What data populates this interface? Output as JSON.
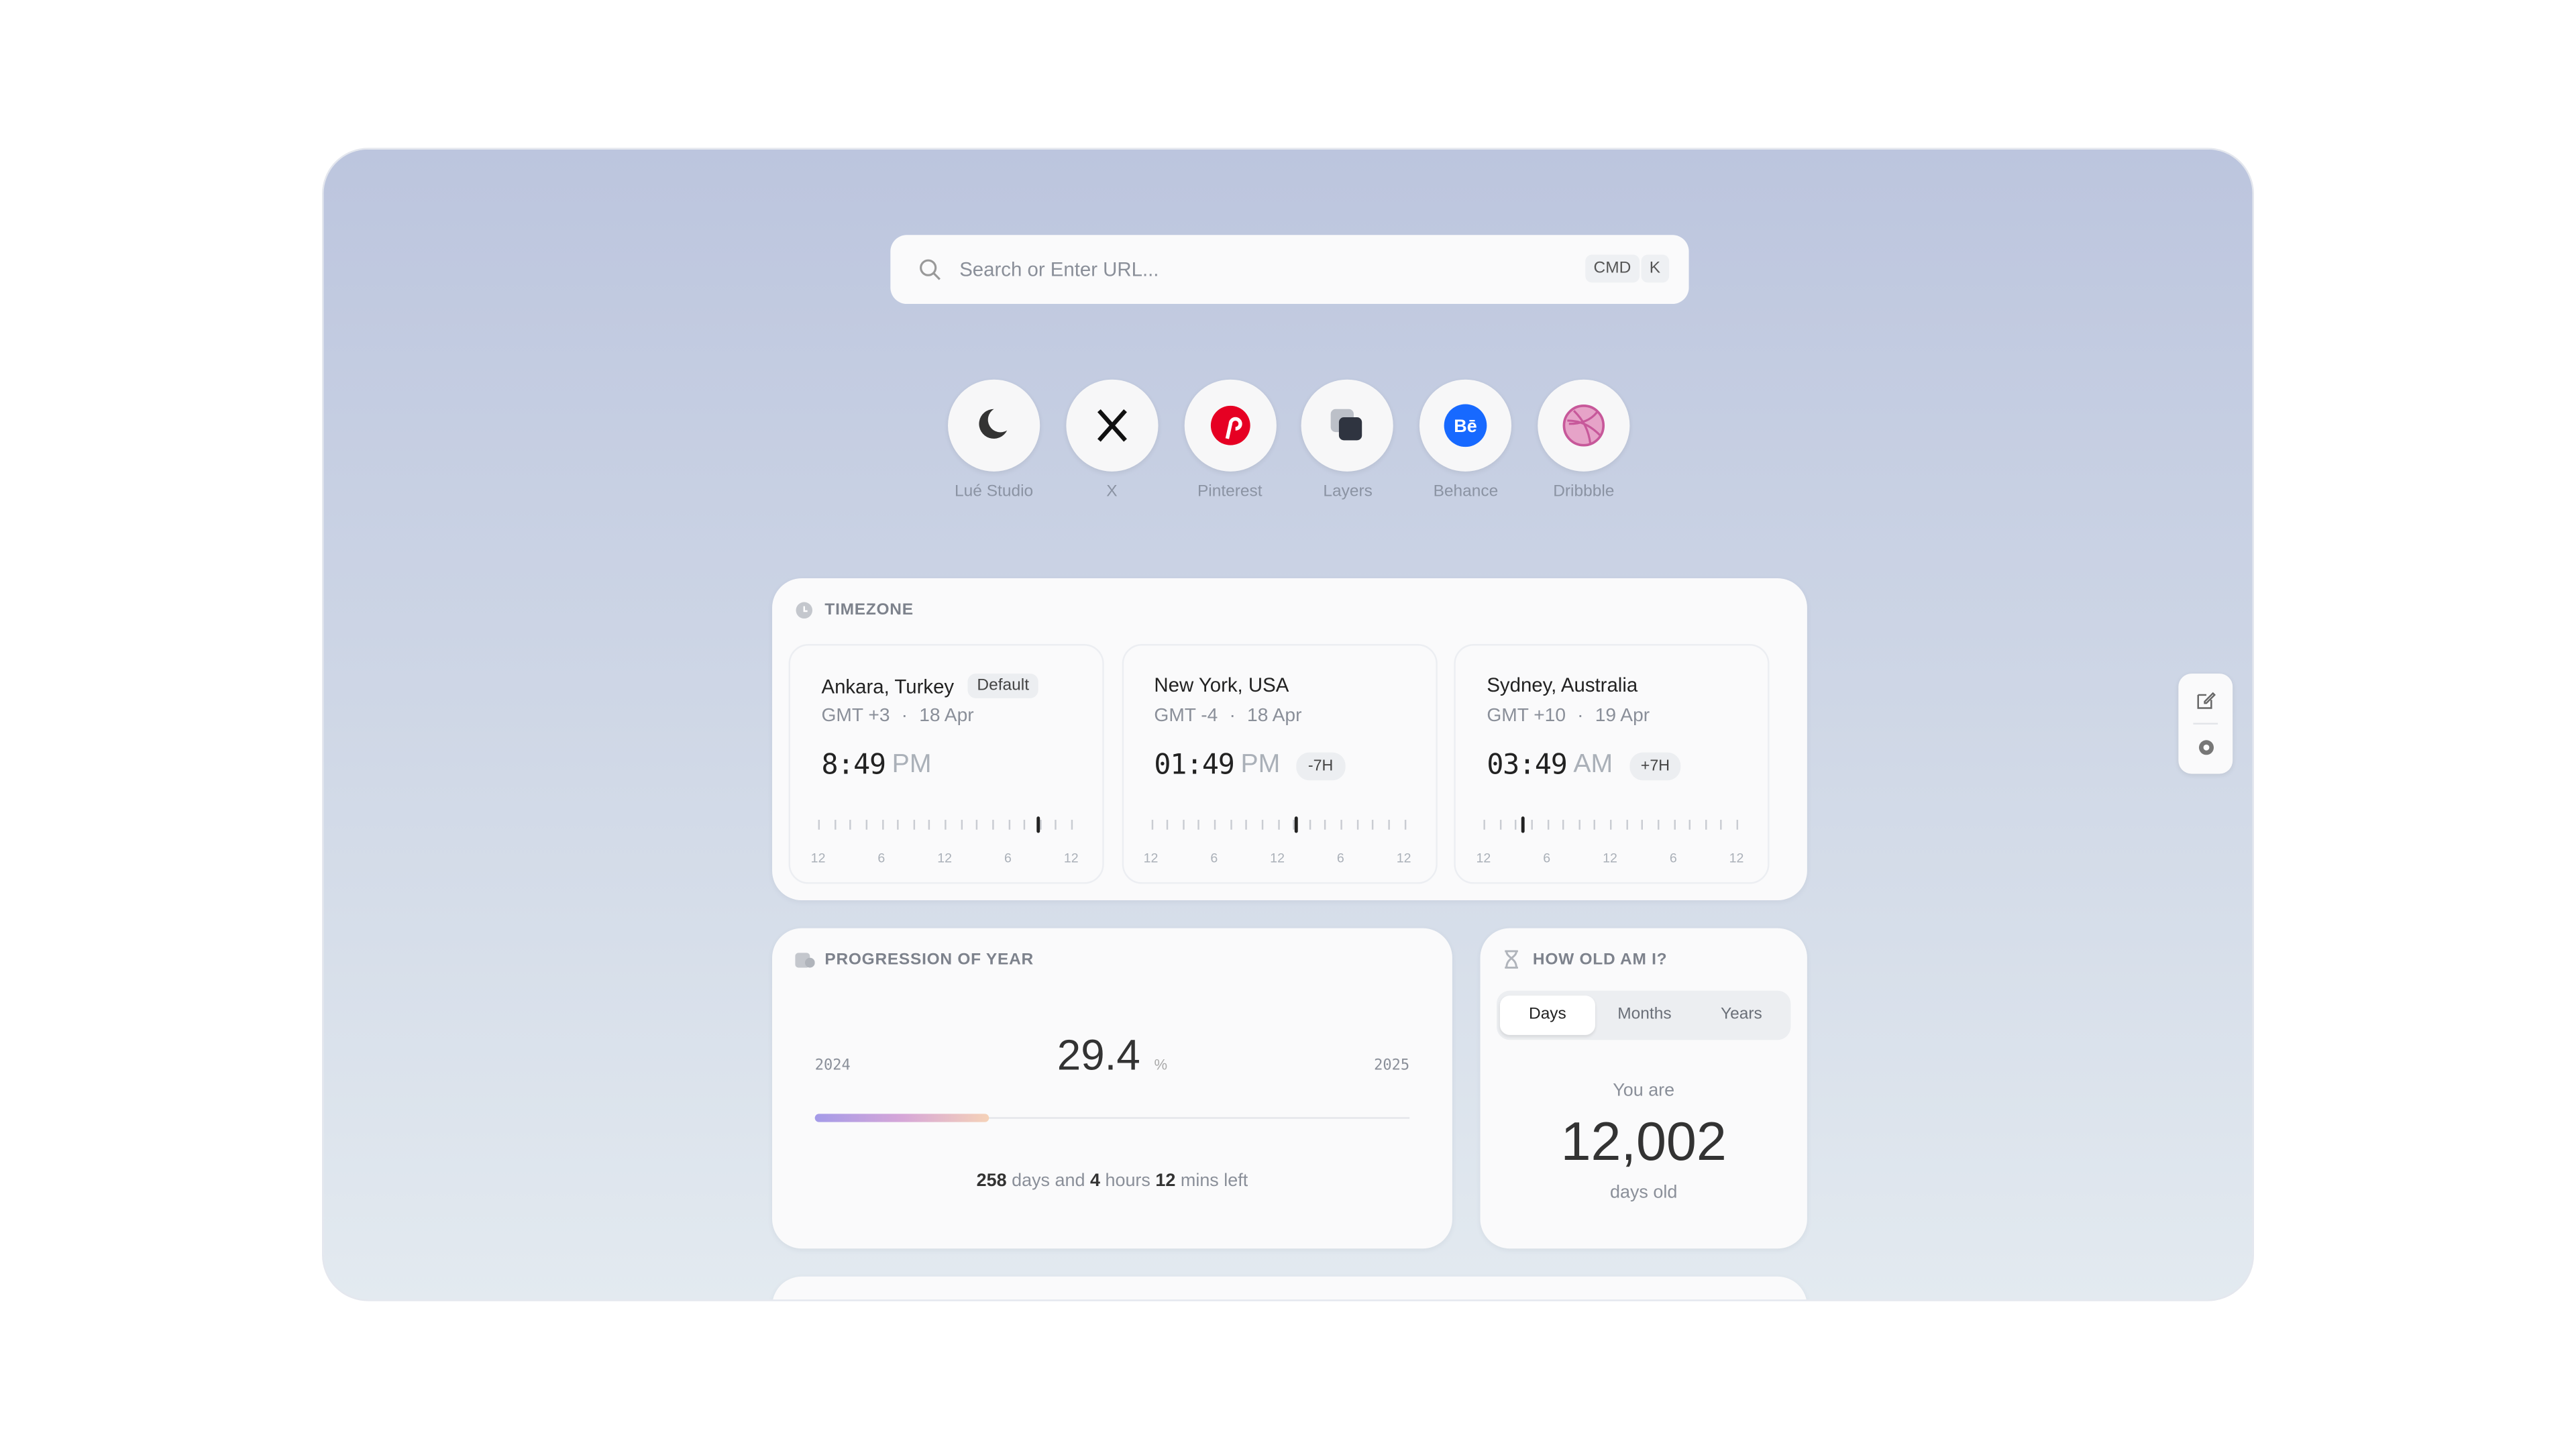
{
  "search": {
    "placeholder": "Search or Enter URL...",
    "keys": [
      "CMD",
      "K"
    ]
  },
  "shortcuts": [
    {
      "label": "Lué Studio"
    },
    {
      "label": "X"
    },
    {
      "label": "Pinterest"
    },
    {
      "label": "Layers"
    },
    {
      "label": "Behance"
    },
    {
      "label": "Dribbble"
    }
  ],
  "timezone": {
    "title": "TIMEZONE",
    "scale_labels": [
      "12",
      "6",
      "12",
      "6",
      "12"
    ],
    "cities": [
      {
        "city": "Ankara, Turkey",
        "badge": "Default",
        "gmt": "GMT +3",
        "date": "18 Apr",
        "time": "8:49",
        "period": "PM"
      },
      {
        "city": "New York, USA",
        "gmt": "GMT -4",
        "date": "18 Apr",
        "time": "01:49",
        "period": "PM",
        "offset": "-7H"
      },
      {
        "city": "Sydney, Australia",
        "gmt": "GMT +10",
        "date": "19 Apr",
        "time": "03:49",
        "period": "AM",
        "offset": "+7H"
      }
    ]
  },
  "progression": {
    "title": "PROGRESSION OF YEAR",
    "start": "2024",
    "end": "2025",
    "value": 29.4,
    "unit": "%",
    "days": 258,
    "days_text": "days and",
    "hours": 4,
    "hours_text": "hours",
    "mins": 12,
    "mins_text": "mins left"
  },
  "age": {
    "title": "HOW OLD AM I?",
    "tabs": [
      "Days",
      "Months",
      "Years"
    ],
    "active_tab": 0,
    "prefix": "You are",
    "value": "12,002",
    "suffix": "days old"
  }
}
